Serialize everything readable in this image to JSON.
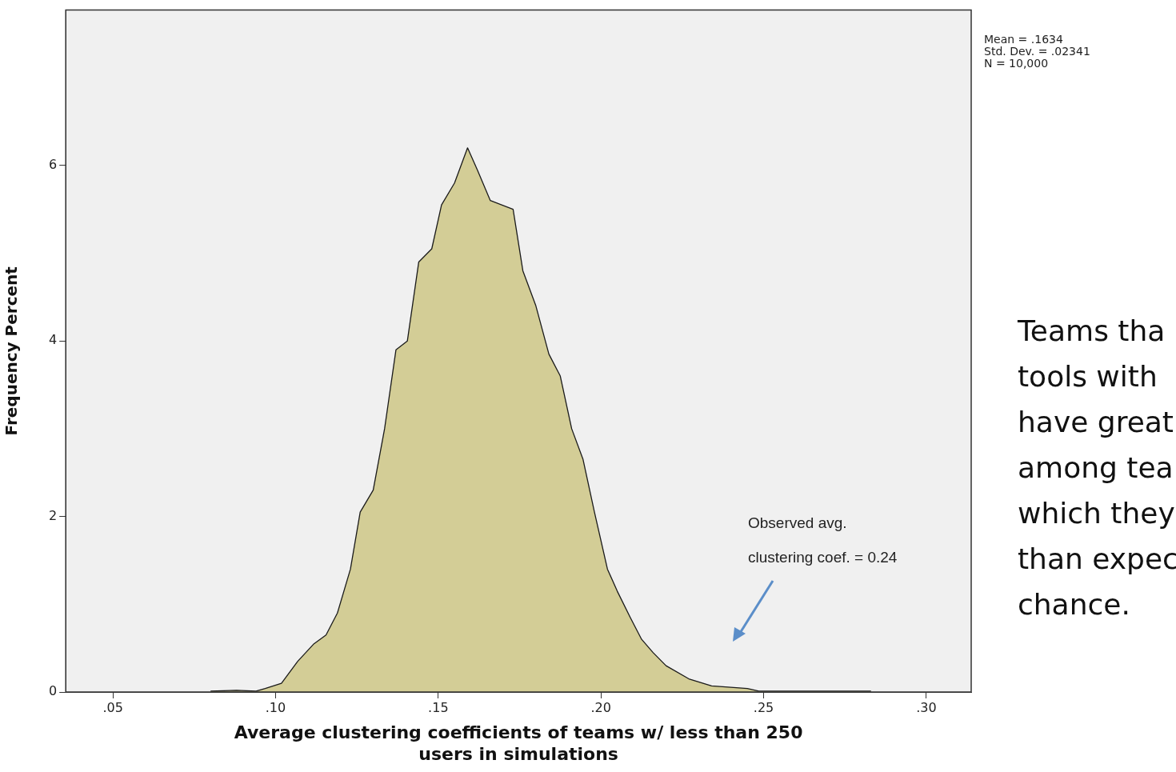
{
  "chart_data": {
    "type": "area",
    "xlabel": "Average clustering coefficients of teams w/ less than 250\nusers in simulations",
    "ylabel": "Frequency Percent",
    "x": [
      0.08,
      0.088,
      0.094,
      0.0968,
      0.1018,
      0.1068,
      0.1118,
      0.1155,
      0.119,
      0.123,
      0.126,
      0.13,
      0.1335,
      0.137,
      0.1405,
      0.144,
      0.148,
      0.151,
      0.155,
      0.159,
      0.162,
      0.166,
      0.173,
      0.176,
      0.18,
      0.184,
      0.1875,
      0.191,
      0.1945,
      0.198,
      0.202,
      0.205,
      0.209,
      0.2125,
      0.216,
      0.22,
      0.227,
      0.234,
      0.245,
      0.2485,
      0.26,
      0.283
    ],
    "series": [
      {
        "color": "#d3cd96",
        "values": [
          0.01,
          0.02,
          0.01,
          0.04,
          0.1,
          0.35,
          0.55,
          0.65,
          0.9,
          1.4,
          2.05,
          2.3,
          3.0,
          3.9,
          4.0,
          4.9,
          5.05,
          5.55,
          5.8,
          6.2,
          5.95,
          5.6,
          5.5,
          4.8,
          4.4,
          3.85,
          3.6,
          3.0,
          2.65,
          2.05,
          1.4,
          1.15,
          0.85,
          0.6,
          0.45,
          0.3,
          0.15,
          0.07,
          0.04,
          0.01,
          0.01,
          0.01
        ]
      }
    ],
    "xlim": [
      0.0355,
      0.3138
    ],
    "ylim": [
      0,
      7.77
    ],
    "xticks": [
      {
        "value": 0.05,
        "label": ".05"
      },
      {
        "value": 0.1,
        "label": ".10"
      },
      {
        "value": 0.15,
        "label": ".15"
      },
      {
        "value": 0.2,
        "label": ".20"
      },
      {
        "value": 0.25,
        "label": ".25"
      },
      {
        "value": 0.3,
        "label": ".30"
      }
    ],
    "yticks": [
      0,
      2,
      4,
      6
    ],
    "grid": false,
    "legend": false,
    "annotations": [
      "Mean = .1634\nStd. Dev. = .02341\nN = 10,000",
      "Observed avg.\nclustering coef. = 0.24",
      "Teams tha\ntools with\nhave great\namong tea\nwhich they\nthan expec\nchance."
    ]
  }
}
